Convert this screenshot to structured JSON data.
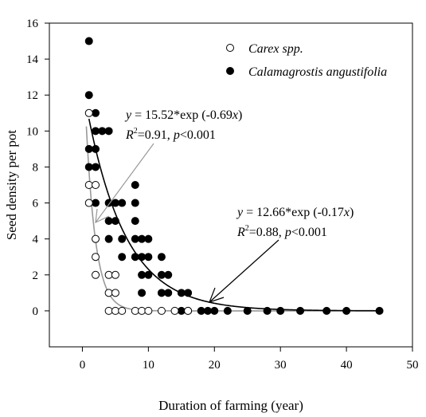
{
  "chart_data": {
    "type": "scatter",
    "xlabel": "Duration of farming (year)",
    "ylabel": "Seed density per pot",
    "xlim": [
      -5,
      50
    ],
    "ylim": [
      -2,
      16
    ],
    "xticks": [
      0,
      10,
      20,
      30,
      40,
      50
    ],
    "yticks": [
      0,
      2,
      4,
      6,
      8,
      10,
      12,
      14,
      16
    ],
    "grid": false,
    "legend_position": "top-right",
    "series": [
      {
        "name": "Carex spp.",
        "marker": "open-circle",
        "color": "#000000",
        "points": [
          [
            1,
            11
          ],
          [
            1,
            7
          ],
          [
            1,
            6
          ],
          [
            2,
            7
          ],
          [
            2,
            4
          ],
          [
            2,
            3
          ],
          [
            2,
            2
          ],
          [
            4,
            2
          ],
          [
            4,
            1
          ],
          [
            4,
            0
          ],
          [
            5,
            2
          ],
          [
            5,
            1
          ],
          [
            5,
            0
          ],
          [
            6,
            0
          ],
          [
            8,
            0
          ],
          [
            9,
            0
          ],
          [
            10,
            0
          ],
          [
            12,
            0
          ],
          [
            14,
            0
          ],
          [
            16,
            0
          ]
        ],
        "fit": {
          "a": 15.52,
          "b": -0.69,
          "color": "#999999"
        }
      },
      {
        "name": "Calamagrostis angustifolia",
        "marker": "filled-circle",
        "color": "#000000",
        "points": [
          [
            1,
            15
          ],
          [
            1,
            12
          ],
          [
            1,
            9
          ],
          [
            1,
            8
          ],
          [
            2,
            11
          ],
          [
            2,
            10
          ],
          [
            2,
            9
          ],
          [
            2,
            8
          ],
          [
            2,
            6
          ],
          [
            3,
            10
          ],
          [
            4,
            10
          ],
          [
            4,
            6
          ],
          [
            4,
            5
          ],
          [
            4,
            4
          ],
          [
            5,
            6
          ],
          [
            5,
            5
          ],
          [
            6,
            6
          ],
          [
            6,
            4
          ],
          [
            6,
            3
          ],
          [
            8,
            7
          ],
          [
            8,
            6
          ],
          [
            8,
            5
          ],
          [
            8,
            4
          ],
          [
            8,
            3
          ],
          [
            9,
            4
          ],
          [
            9,
            3
          ],
          [
            9,
            2
          ],
          [
            9,
            1
          ],
          [
            10,
            4
          ],
          [
            10,
            3
          ],
          [
            10,
            2
          ],
          [
            12,
            3
          ],
          [
            12,
            2
          ],
          [
            12,
            1
          ],
          [
            13,
            2
          ],
          [
            13,
            1
          ],
          [
            15,
            1
          ],
          [
            15,
            0
          ],
          [
            16,
            1
          ],
          [
            16,
            0
          ],
          [
            18,
            0
          ],
          [
            19,
            0
          ],
          [
            20,
            0
          ],
          [
            22,
            0
          ],
          [
            25,
            0
          ],
          [
            28,
            0
          ],
          [
            30,
            0
          ],
          [
            33,
            0
          ],
          [
            37,
            0
          ],
          [
            40,
            0
          ],
          [
            45,
            0
          ]
        ],
        "fit": {
          "a": 12.66,
          "b": -0.17,
          "color": "#000000"
        }
      }
    ],
    "annotations": [
      {
        "id": "carex-eq",
        "eq_y": "y",
        "eq_body": " = 15.52*exp (-0.69",
        "eq_x": "x",
        "eq_close": ")",
        "r2_r": "R",
        "r2_sup": "2",
        "r2_eq": "=0.91, ",
        "p_p": "p",
        "p_val": "<0.001",
        "arrow_color": "#999999"
      },
      {
        "id": "calamagrostis-eq",
        "eq_y": "y",
        "eq_body": " = 12.66*exp (-0.17",
        "eq_x": "x",
        "eq_close": ")",
        "r2_r": "R",
        "r2_sup": "2",
        "r2_eq": "=0.88, ",
        "p_p": "p",
        "p_val": "<0.001",
        "arrow_color": "#000000"
      }
    ]
  }
}
